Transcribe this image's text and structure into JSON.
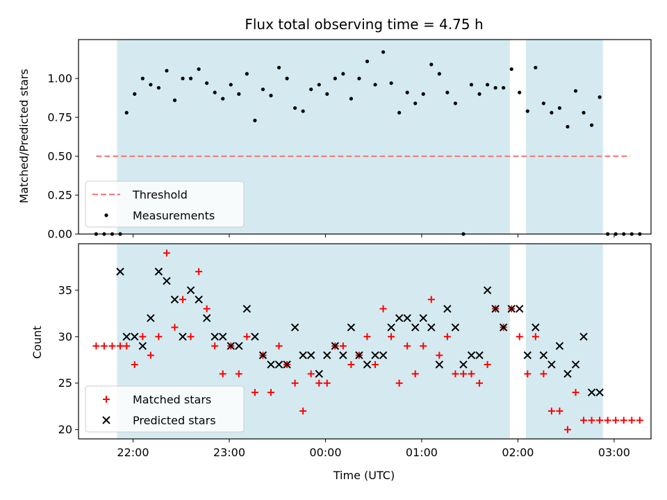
{
  "chart_data": [
    {
      "type": "scatter",
      "title": "Flux total observing time = 4.75 h",
      "xlabel": "",
      "ylabel": "Matched/Predicted stars",
      "xlim": [
        "21:26",
        "03:23"
      ],
      "ylim": [
        0.0,
        1.25
      ],
      "yticks": [
        0.0,
        0.25,
        0.5,
        0.75,
        1.0
      ],
      "ytick_labels": [
        "0.00",
        "0.25",
        "0.50",
        "0.75",
        "1.00"
      ],
      "xticks": [
        "22:00",
        "23:00",
        "00:00",
        "01:00",
        "02:00",
        "03:00"
      ],
      "shaded_intervals": [
        [
          "21:50",
          "01:55"
        ],
        [
          "02:05",
          "02:53"
        ]
      ],
      "shade_color": "#d4eaf0",
      "threshold": {
        "name": "Threshold",
        "value": 0.5,
        "x": [
          "21:37",
          "03:10"
        ],
        "color": "#f08080"
      },
      "legend": {
        "position": "lower-left",
        "entries": [
          "Threshold",
          "Measurements"
        ]
      },
      "series": [
        {
          "name": "Measurements",
          "color": "#000000",
          "x": [
            "21:37",
            "21:42",
            "21:47",
            "21:52",
            "21:56",
            "22:01",
            "22:06",
            "22:11",
            "22:16",
            "22:21",
            "22:26",
            "22:31",
            "22:36",
            "22:41",
            "22:46",
            "22:51",
            "22:56",
            "23:01",
            "23:06",
            "23:11",
            "23:16",
            "23:21",
            "23:26",
            "23:31",
            "23:36",
            "23:41",
            "23:46",
            "23:51",
            "23:56",
            "00:01",
            "00:06",
            "00:11",
            "00:16",
            "00:21",
            "00:26",
            "00:31",
            "00:36",
            "00:41",
            "00:46",
            "00:51",
            "00:56",
            "01:01",
            "01:06",
            "01:11",
            "01:16",
            "01:21",
            "01:26",
            "01:31",
            "01:36",
            "01:41",
            "01:46",
            "01:51",
            "01:56",
            "02:01",
            "02:06",
            "02:11",
            "02:16",
            "02:21",
            "02:26",
            "02:31",
            "02:36",
            "02:41",
            "02:46",
            "02:51",
            "02:56",
            "03:01",
            "03:06",
            "03:11",
            "03:16"
          ],
          "y": [
            0.0,
            0.0,
            0.0,
            0.0,
            0.78,
            0.9,
            1.0,
            0.96,
            0.94,
            1.05,
            0.86,
            1.0,
            1.0,
            1.06,
            0.97,
            0.91,
            0.87,
            0.96,
            0.9,
            1.03,
            0.73,
            0.93,
            0.89,
            1.07,
            1.0,
            0.81,
            0.79,
            0.93,
            0.96,
            0.9,
            1.0,
            1.03,
            0.87,
            1.0,
            1.11,
            0.96,
            1.17,
            0.97,
            0.78,
            0.91,
            0.84,
            0.9,
            1.09,
            1.03,
            0.91,
            0.84,
            0.0,
            0.96,
            0.9,
            0.96,
            0.94,
            0.94,
            1.06,
            0.91,
            0.79,
            1.07,
            0.84,
            0.78,
            0.81,
            0.69,
            0.92,
            0.78,
            0.7,
            0.88,
            0.0,
            0.0,
            0.0,
            0.0,
            0.0
          ]
        }
      ]
    },
    {
      "type": "scatter",
      "title": "",
      "xlabel": "Time (UTC)",
      "ylabel": "Count",
      "xlim": [
        "21:26",
        "03:23"
      ],
      "ylim": [
        19,
        40
      ],
      "yticks": [
        20,
        25,
        30,
        35
      ],
      "ytick_labels": [
        "20",
        "25",
        "30",
        "35"
      ],
      "xticks": [
        "22:00",
        "23:00",
        "00:00",
        "01:00",
        "02:00",
        "03:00"
      ],
      "xtick_labels": [
        "22:00",
        "23:00",
        "00:00",
        "01:00",
        "02:00",
        "03:00"
      ],
      "shaded_intervals": [
        [
          "21:50",
          "01:55"
        ],
        [
          "02:05",
          "02:53"
        ]
      ],
      "legend": {
        "position": "lower-left",
        "entries": [
          "Matched stars",
          "Predicted stars"
        ]
      },
      "series": [
        {
          "name": "Matched stars",
          "marker": "plus",
          "color": "#ff0000",
          "x": [
            "21:37",
            "21:42",
            "21:47",
            "21:52",
            "21:56",
            "22:01",
            "22:06",
            "22:11",
            "22:16",
            "22:21",
            "22:26",
            "22:31",
            "22:36",
            "22:41",
            "22:46",
            "22:51",
            "22:56",
            "23:01",
            "23:06",
            "23:11",
            "23:16",
            "23:21",
            "23:26",
            "23:31",
            "23:36",
            "23:41",
            "23:46",
            "23:51",
            "23:56",
            "00:01",
            "00:06",
            "00:11",
            "00:16",
            "00:21",
            "00:26",
            "00:31",
            "00:36",
            "00:41",
            "00:46",
            "00:51",
            "00:56",
            "01:01",
            "01:06",
            "01:11",
            "01:16",
            "01:21",
            "01:26",
            "01:31",
            "01:36",
            "01:41",
            "01:46",
            "01:51",
            "01:56",
            "02:01",
            "02:06",
            "02:11",
            "02:16",
            "02:21",
            "02:26",
            "02:31",
            "02:36",
            "02:41",
            "02:46",
            "02:51",
            "02:56",
            "03:01",
            "03:06",
            "03:11",
            "03:16"
          ],
          "y": [
            29,
            29,
            29,
            29,
            29,
            27,
            30,
            28,
            30,
            39,
            31,
            34,
            30,
            37,
            33,
            29,
            26,
            29,
            26,
            30,
            24,
            28,
            24,
            29,
            27,
            25,
            22,
            26,
            25,
            25,
            29,
            29,
            27,
            28,
            30,
            27,
            33,
            30,
            25,
            29,
            26,
            29,
            34,
            28,
            30,
            26,
            26,
            26,
            25,
            27,
            33,
            31,
            33,
            30,
            26,
            30,
            26,
            22,
            22,
            20,
            24,
            21,
            21,
            21,
            21,
            21,
            21,
            21,
            21
          ]
        },
        {
          "name": "Predicted stars",
          "marker": "cross",
          "color": "#000000",
          "x": [
            "21:52",
            "21:56",
            "22:01",
            "22:06",
            "22:11",
            "22:16",
            "22:21",
            "22:26",
            "22:31",
            "22:36",
            "22:41",
            "22:46",
            "22:51",
            "22:56",
            "23:01",
            "23:06",
            "23:11",
            "23:16",
            "23:21",
            "23:26",
            "23:31",
            "23:36",
            "23:41",
            "23:46",
            "23:51",
            "23:56",
            "00:01",
            "00:06",
            "00:11",
            "00:16",
            "00:21",
            "00:26",
            "00:31",
            "00:36",
            "00:41",
            "00:46",
            "00:51",
            "00:56",
            "01:01",
            "01:06",
            "01:11",
            "01:16",
            "01:21",
            "01:26",
            "01:31",
            "01:36",
            "01:41",
            "01:46",
            "01:51",
            "01:56",
            "02:01",
            "02:06",
            "02:11",
            "02:16",
            "02:21",
            "02:26",
            "02:31",
            "02:36",
            "02:41",
            "02:46",
            "02:51"
          ],
          "y": [
            37,
            30,
            30,
            29,
            32,
            37,
            36,
            34,
            30,
            35,
            34,
            32,
            30,
            30,
            29,
            29,
            33,
            30,
            28,
            27,
            27,
            27,
            31,
            28,
            28,
            26,
            28,
            29,
            28,
            31,
            28,
            27,
            28,
            28,
            31,
            32,
            32,
            31,
            32,
            31,
            27,
            33,
            31,
            27,
            28,
            28,
            35,
            33,
            31,
            33,
            33,
            28,
            31,
            28,
            27,
            29,
            26,
            27,
            30,
            24,
            24
          ]
        }
      ]
    }
  ]
}
